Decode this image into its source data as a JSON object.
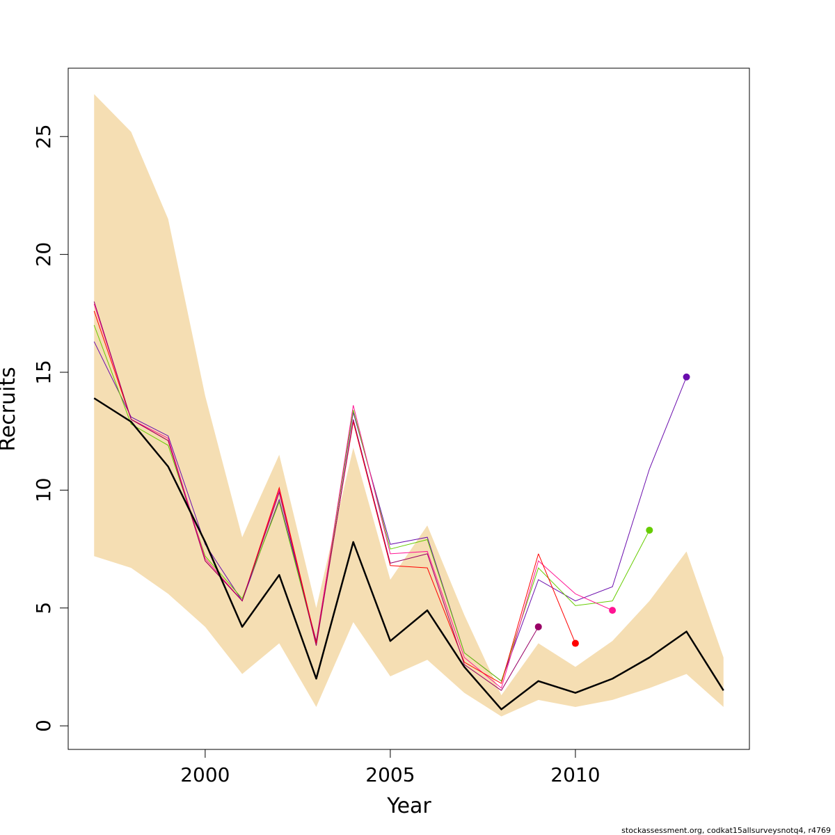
{
  "chart_data": {
    "type": "line",
    "title": "",
    "xlabel": "Year",
    "ylabel": "Recruits",
    "xlim": [
      1996.3,
      2014.7
    ],
    "ylim": [
      -1,
      27.9
    ],
    "x_ticks": [
      2000,
      2005,
      2010
    ],
    "y_ticks": [
      0,
      5,
      10,
      15,
      20,
      25
    ],
    "grid": false,
    "legend": "none",
    "band": {
      "color": "#F5DEB3",
      "x": [
        1997,
        1998,
        1999,
        2000,
        2001,
        2002,
        2003,
        2004,
        2005,
        2006,
        2007,
        2008,
        2009,
        2010,
        2011,
        2012,
        2013,
        2014
      ],
      "upper": [
        26.8,
        25.2,
        21.5,
        14.0,
        8.0,
        11.5,
        5.0,
        11.8,
        6.2,
        8.5,
        4.7,
        1.3,
        3.5,
        2.5,
        3.6,
        5.3,
        7.4,
        2.9
      ],
      "lower": [
        7.2,
        6.7,
        5.6,
        4.2,
        2.2,
        3.5,
        0.8,
        4.4,
        2.1,
        2.8,
        1.4,
        0.4,
        1.1,
        0.8,
        1.1,
        1.6,
        2.2,
        0.8
      ]
    },
    "main_series": {
      "color": "#000000",
      "x": [
        1997,
        1998,
        1999,
        2000,
        2001,
        2002,
        2003,
        2004,
        2005,
        2006,
        2007,
        2008,
        2009,
        2010,
        2011,
        2012,
        2013,
        2014
      ],
      "values": [
        13.9,
        12.9,
        11.0,
        7.8,
        4.2,
        6.4,
        2.0,
        7.8,
        3.6,
        4.9,
        2.5,
        0.7,
        1.9,
        1.4,
        2.0,
        2.9,
        4.0,
        1.5
      ]
    },
    "retro_series": [
      {
        "color": "#6A0DAD",
        "x": [
          1997,
          1998,
          1999,
          2000,
          2001,
          2002,
          2003,
          2004,
          2005,
          2006,
          2007,
          2008,
          2009,
          2010,
          2011,
          2012,
          2013
        ],
        "values": [
          16.3,
          13.1,
          12.3,
          7.7,
          5.3,
          9.6,
          3.6,
          13.3,
          7.7,
          8.0,
          3.1,
          1.9,
          6.2,
          5.3,
          5.9,
          10.9,
          14.8
        ],
        "end_point": true
      },
      {
        "color": "#66CC00",
        "x": [
          1997,
          1998,
          1999,
          2000,
          2001,
          2002,
          2003,
          2004,
          2005,
          2006,
          2007,
          2008,
          2009,
          2010,
          2011,
          2012
        ],
        "values": [
          17.0,
          12.8,
          11.9,
          7.2,
          5.4,
          9.5,
          3.5,
          13.4,
          7.5,
          7.9,
          3.1,
          1.9,
          6.7,
          5.1,
          5.3,
          8.3
        ],
        "end_point": true
      },
      {
        "color": "#FF1493",
        "x": [
          1997,
          1998,
          1999,
          2000,
          2001,
          2002,
          2003,
          2004,
          2005,
          2006,
          2007,
          2008,
          2009,
          2010,
          2011
        ],
        "values": [
          17.9,
          13.0,
          12.2,
          7.1,
          5.3,
          10.0,
          3.5,
          13.6,
          7.3,
          7.4,
          2.9,
          1.6,
          7.0,
          5.6,
          4.9
        ],
        "end_point": true
      },
      {
        "color": "#FF0000",
        "x": [
          1997,
          1998,
          1999,
          2000,
          2001,
          2002,
          2003,
          2004,
          2005,
          2006,
          2007,
          2008,
          2009,
          2010
        ],
        "values": [
          17.6,
          13.0,
          12.1,
          7.0,
          5.3,
          10.1,
          3.5,
          12.9,
          6.8,
          6.7,
          2.7,
          1.8,
          7.3,
          3.5
        ],
        "end_point": true
      },
      {
        "color": "#990066",
        "x": [
          1997,
          1998,
          1999,
          2000,
          2001,
          2002,
          2003,
          2004,
          2005,
          2006,
          2007,
          2008,
          2009
        ],
        "values": [
          18.0,
          13.0,
          12.1,
          7.0,
          5.3,
          9.9,
          3.4,
          13.0,
          6.9,
          7.3,
          2.6,
          1.5,
          4.2
        ],
        "end_point": true
      }
    ]
  },
  "footer_note": "stockassessment.org, codkat15allsurveysnotq4, r4769"
}
